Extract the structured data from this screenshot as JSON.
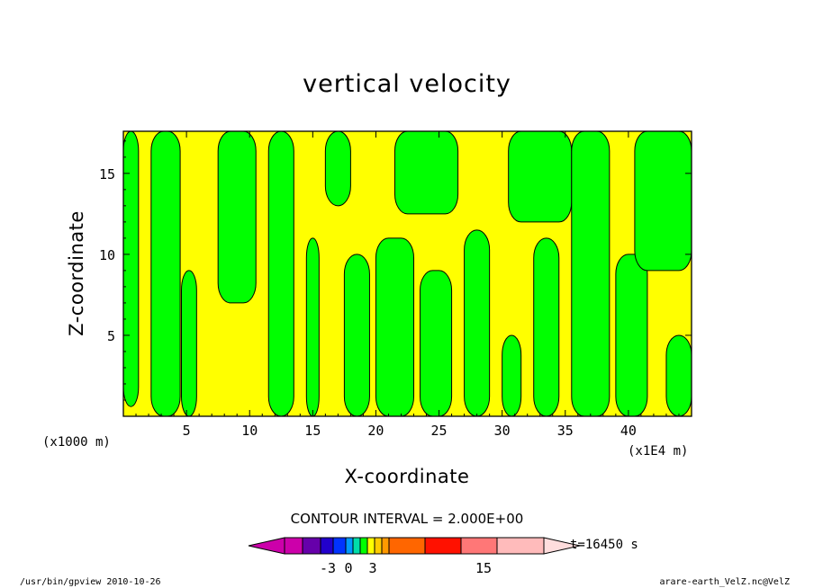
{
  "chart_data": {
    "type": "heatmap",
    "title": "vertical velocity",
    "xlabel": "X-coordinate",
    "ylabel": "Z-coordinate",
    "x_unit": "(x1E4 m)",
    "y_unit": "(x1000 m)",
    "xlim": [
      0,
      45
    ],
    "ylim": [
      0,
      17.6
    ],
    "x_ticks": [
      5,
      10,
      15,
      20,
      25,
      30,
      35,
      40
    ],
    "y_ticks": [
      5,
      10,
      15
    ],
    "contour_interval_text": "CONTOUR INTERVAL = 2.000E+00",
    "time_label": "t=16450 s",
    "colorbar": {
      "colors": [
        "#cc00aa",
        "#6600aa",
        "#2200cc",
        "#0033ff",
        "#0099ff",
        "#00ddaa",
        "#00ff00",
        "#ffff00",
        "#ffcc00",
        "#ff9900",
        "#ff6600",
        "#ff1100",
        "#ff7777",
        "#ffbbbb"
      ],
      "tick_labels": [
        "-3",
        "0",
        "3",
        "15"
      ],
      "tick_values": [
        -3,
        0,
        3,
        15
      ]
    },
    "colors": {
      "positive": "#ffff00",
      "negative": "#00ff00",
      "contour_line": "#000000"
    },
    "green_bands": [
      {
        "x_range": [
          0,
          1.2
        ],
        "z_range": [
          0.6,
          17.6
        ]
      },
      {
        "x_range": [
          2.2,
          4.5
        ],
        "z_range": [
          0,
          17.6
        ]
      },
      {
        "x_range": [
          4.6,
          5.8
        ],
        "z_range": [
          0,
          9
        ]
      },
      {
        "x_range": [
          7.5,
          10.5
        ],
        "z_range": [
          7,
          17.6
        ]
      },
      {
        "x_range": [
          11.5,
          13.5
        ],
        "z_range": [
          0,
          17.6
        ]
      },
      {
        "x_range": [
          14.5,
          15.5
        ],
        "z_range": [
          0,
          11
        ]
      },
      {
        "x_range": [
          16,
          18
        ],
        "z_range": [
          13,
          17.6
        ]
      },
      {
        "x_range": [
          17.5,
          19.5
        ],
        "z_range": [
          0,
          10
        ]
      },
      {
        "x_range": [
          20,
          23
        ],
        "z_range": [
          0,
          11
        ]
      },
      {
        "x_range": [
          21.5,
          26.5
        ],
        "z_range": [
          12.5,
          17.6
        ]
      },
      {
        "x_range": [
          23.5,
          26
        ],
        "z_range": [
          0,
          9
        ]
      },
      {
        "x_range": [
          27,
          29
        ],
        "z_range": [
          0,
          11.5
        ]
      },
      {
        "x_range": [
          30,
          31.5
        ],
        "z_range": [
          0,
          5
        ]
      },
      {
        "x_range": [
          30.5,
          35.5
        ],
        "z_range": [
          12,
          17.6
        ]
      },
      {
        "x_range": [
          32.5,
          34.5
        ],
        "z_range": [
          0,
          11
        ]
      },
      {
        "x_range": [
          35.5,
          38.5
        ],
        "z_range": [
          0,
          17.6
        ]
      },
      {
        "x_range": [
          39,
          41.5
        ],
        "z_range": [
          0,
          10
        ]
      },
      {
        "x_range": [
          40.5,
          45
        ],
        "z_range": [
          9,
          17.6
        ]
      },
      {
        "x_range": [
          43,
          45
        ],
        "z_range": [
          0,
          5
        ]
      }
    ]
  },
  "footer": {
    "left": "/usr/bin/gpview   2010-10-26",
    "right": "arare-earth_VelZ.nc@VelZ"
  }
}
